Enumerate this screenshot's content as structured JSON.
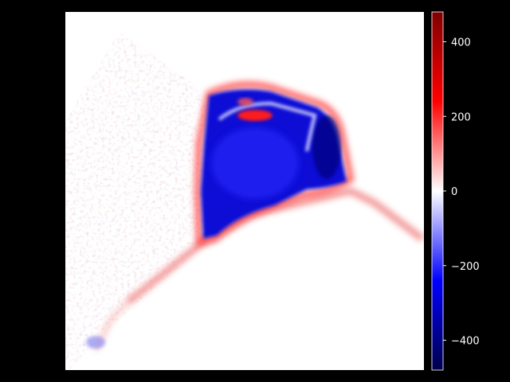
{
  "chart_data": {
    "type": "heatmap",
    "title": "",
    "xlabel": "",
    "ylabel": "",
    "axes_visible": false,
    "background": "#000000",
    "colormap": "seismic",
    "colormap_stops": [
      "#00004c",
      "#0000ff",
      "#ffffff",
      "#ff0000",
      "#800000"
    ],
    "vmin": -480,
    "vmax": 480,
    "colorbar": {
      "position": "right",
      "ticks": [
        400,
        200,
        0,
        -200,
        -400
      ],
      "tick_labels": [
        "400",
        "200",
        "0",
        "−200",
        "−400"
      ]
    },
    "image_description_values": {
      "background_level": 0,
      "central_blob_level": -420,
      "rim_level": 180,
      "speckle_level": 40
    }
  }
}
